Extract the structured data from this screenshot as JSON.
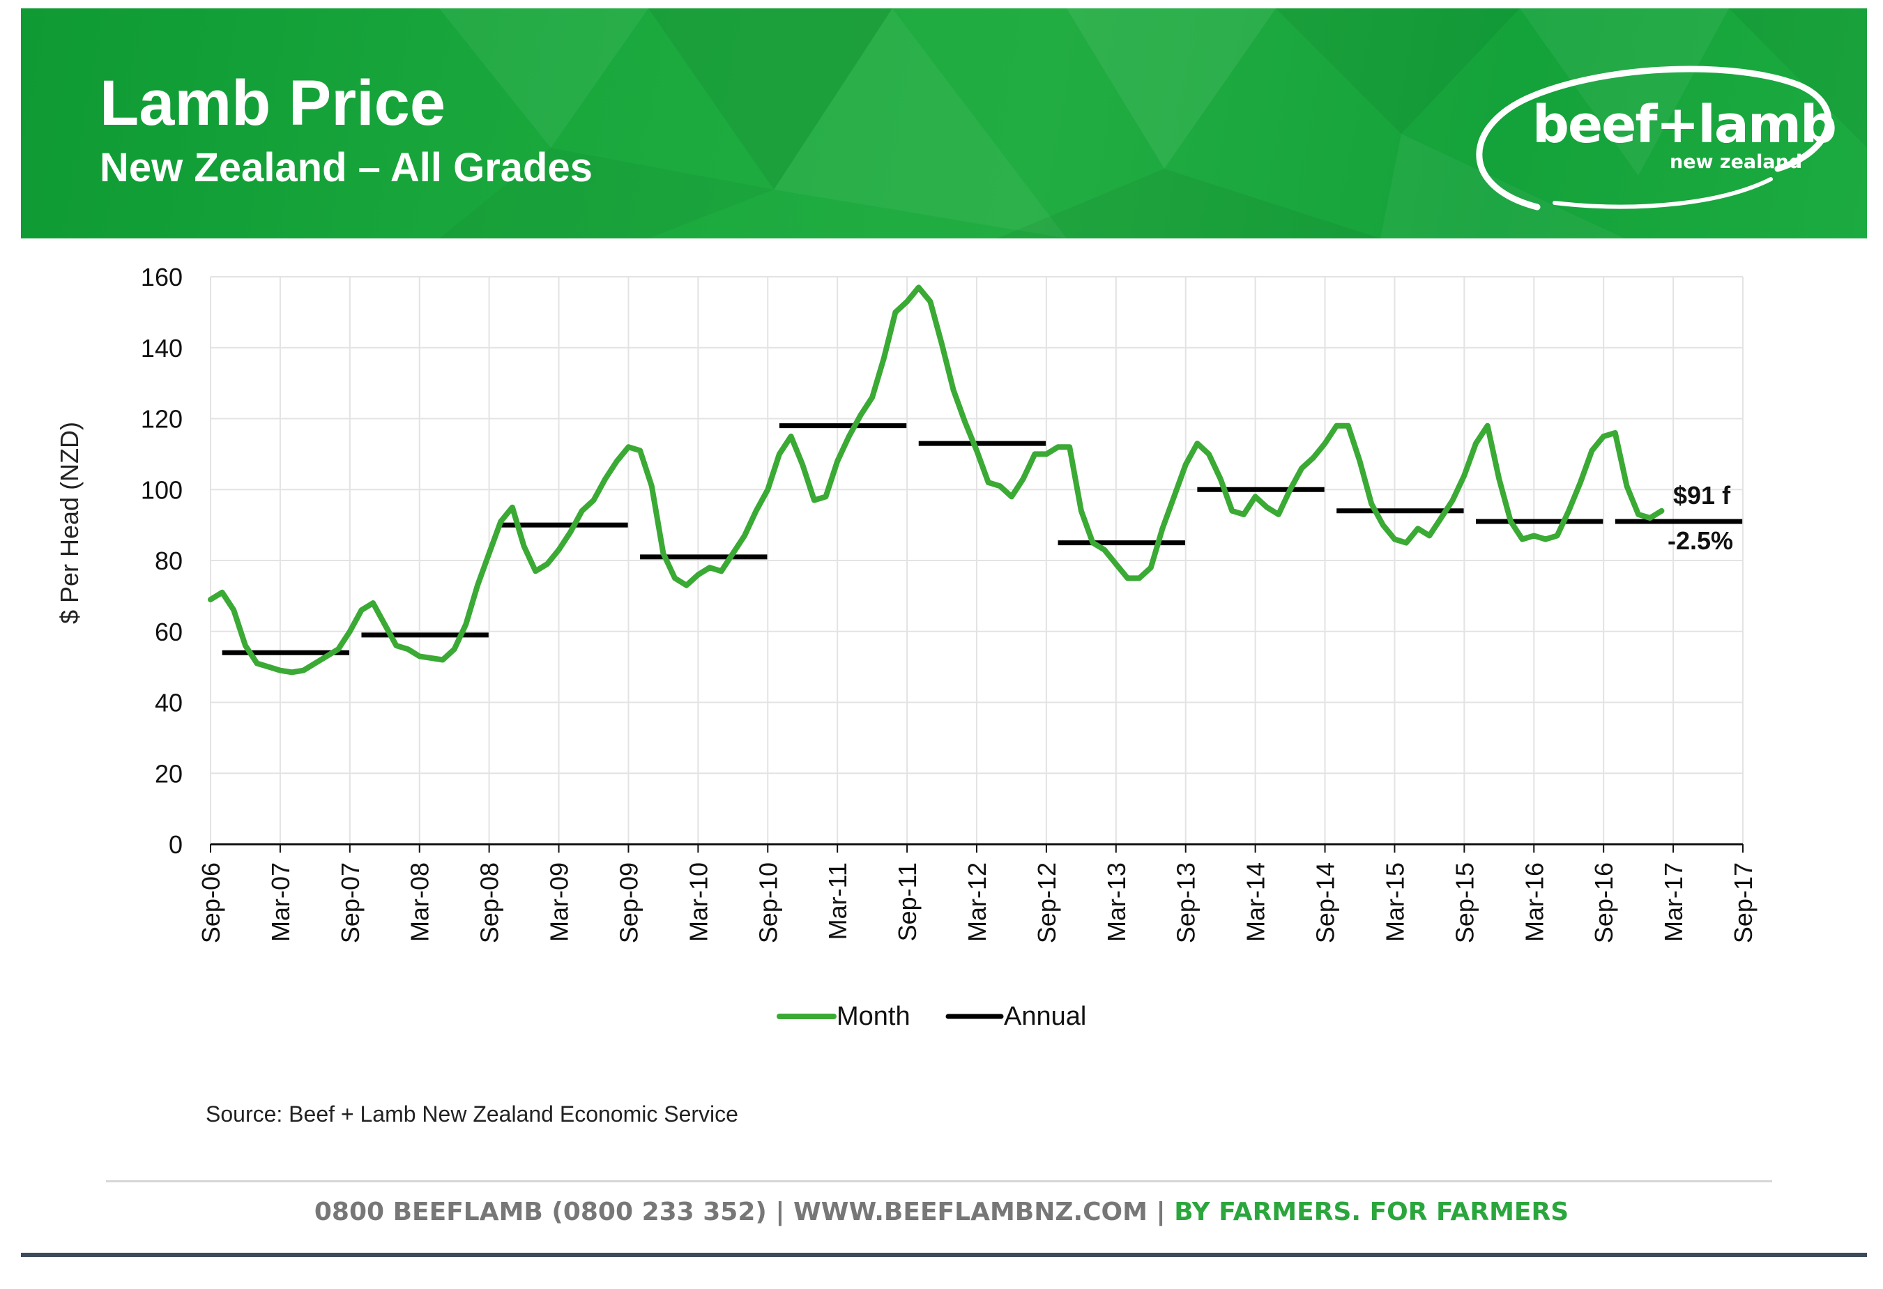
{
  "header": {
    "title": "Lamb Price",
    "subtitle": "New Zealand – All Grades",
    "logo": {
      "brand": "beef+lamb",
      "sub": "new zealand"
    }
  },
  "chart_data": {
    "type": "line",
    "ylabel": "$ Per Head (NZD)",
    "ylim": [
      0,
      160
    ],
    "yticks": [
      0,
      20,
      40,
      60,
      80,
      100,
      120,
      140,
      160
    ],
    "x_start": "Sep-06",
    "x_end": "Sep-17",
    "xticks": [
      "Sep-06",
      "Mar-07",
      "Sep-07",
      "Mar-08",
      "Sep-08",
      "Mar-09",
      "Sep-09",
      "Mar-10",
      "Sep-10",
      "Mar-11",
      "Sep-11",
      "Mar-12",
      "Sep-12",
      "Mar-13",
      "Sep-13",
      "Mar-14",
      "Sep-14",
      "Mar-15",
      "Sep-15",
      "Mar-16",
      "Sep-16",
      "Mar-17",
      "Sep-17"
    ],
    "grid": true,
    "legend": {
      "position": "bottom",
      "entries": [
        "Month",
        "Annual"
      ]
    },
    "colors": {
      "month": "#3aaa35",
      "annual": "#000000"
    },
    "series": [
      {
        "name": "Month",
        "start": "Sep-06",
        "frequency": "monthly",
        "values": [
          69,
          71,
          66,
          56,
          51,
          50,
          49,
          48.5,
          49,
          51,
          53,
          55,
          60,
          66,
          68,
          62,
          56,
          55,
          53,
          52.5,
          52,
          55,
          62,
          73,
          82,
          91,
          95,
          84,
          77,
          79,
          83,
          88,
          94,
          97,
          103,
          108,
          112,
          111,
          101,
          82,
          75,
          73,
          76,
          78,
          77,
          82,
          87,
          94,
          100,
          110,
          115,
          107,
          97,
          98,
          108,
          115,
          121,
          126,
          137,
          150,
          153,
          157,
          153,
          141,
          128,
          119,
          111,
          102,
          101,
          98,
          103,
          110,
          110,
          112,
          112,
          94,
          85,
          83,
          79,
          75,
          75,
          78,
          89,
          98,
          107,
          113,
          110,
          103,
          94,
          93,
          98,
          95,
          93,
          100,
          106,
          109,
          113,
          118,
          118,
          108,
          96,
          90,
          86,
          85,
          89,
          87,
          92,
          97,
          104,
          113,
          118,
          103,
          91,
          86,
          87,
          86,
          87,
          94,
          102,
          111,
          115,
          116,
          101,
          93,
          92,
          94
        ]
      },
      {
        "name": "Annual",
        "segments": [
          {
            "from": "Sep-06",
            "to": "Sep-07",
            "value": 54
          },
          {
            "from": "Sep-07",
            "to": "Sep-08",
            "value": 59
          },
          {
            "from": "Sep-08",
            "to": "Sep-09",
            "value": 90
          },
          {
            "from": "Sep-09",
            "to": "Sep-10",
            "value": 81
          },
          {
            "from": "Sep-10",
            "to": "Sep-11",
            "value": 118
          },
          {
            "from": "Sep-11",
            "to": "Sep-12",
            "value": 113
          },
          {
            "from": "Sep-12",
            "to": "Sep-13",
            "value": 85
          },
          {
            "from": "Sep-13",
            "to": "Sep-14",
            "value": 100
          },
          {
            "from": "Sep-14",
            "to": "Sep-15",
            "value": 94
          },
          {
            "from": "Sep-15",
            "to": "Sep-16",
            "value": 91
          },
          {
            "from": "Sep-16",
            "to": "Sep-17",
            "value": 91
          }
        ]
      }
    ],
    "annotations": [
      {
        "text": "$91 f"
      },
      {
        "text": "-2.5%"
      }
    ]
  },
  "source": "Source: Beef + Lamb New Zealand Economic Service",
  "footer": {
    "contact": "0800 BEEFLAMB (0800 233 352) | WWW.BEEFLAMBNZ.COM | ",
    "tagline": "BY FARMERS. FOR FARMERS"
  }
}
